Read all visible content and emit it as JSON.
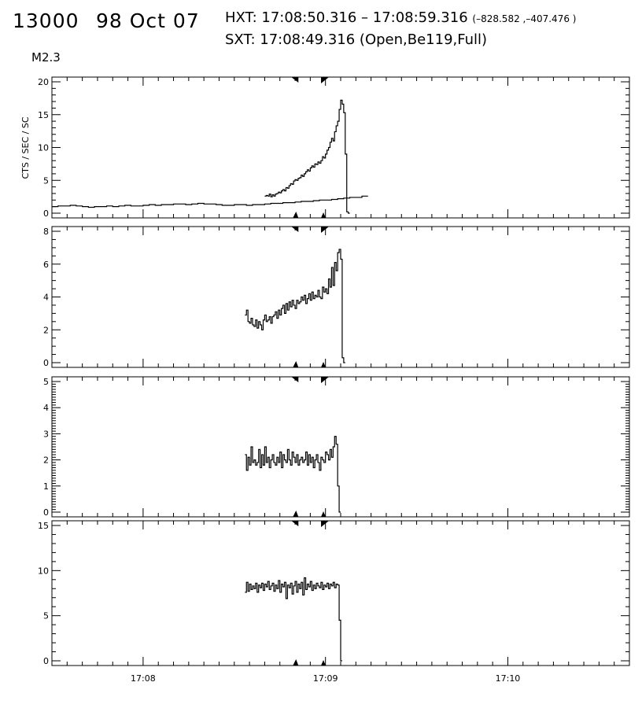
{
  "header": {
    "event_id": "13000",
    "date": "98 Oct 07",
    "hxt_label": "HXT:",
    "hxt_range": "17:08:50.316 – 17:08:59.316",
    "hxt_coords": "(–828.582 ,–407.476 )",
    "sxt_label": "SXT:",
    "sxt_time": "17:08:49.316",
    "sxt_settings": "(Open,Be119,Full)",
    "goes_class": "M2.3"
  },
  "chart_data": {
    "type": "line",
    "style": "histogram-step",
    "line_color": "#000000",
    "ylabel": "CTS / SEC / SC",
    "x_tick_labels": [
      "17:08",
      "17:09",
      "17:10"
    ],
    "x_ticks_seconds": [
      30,
      90,
      150
    ],
    "x_range_seconds": [
      0,
      190
    ],
    "hxt_interval_seconds": [
      80.316,
      89.316
    ],
    "panels": [
      {
        "name": "panel-1",
        "ylim": [
          0,
          20
        ],
        "y_ticks": [
          0,
          5,
          10,
          15,
          20
        ],
        "segments": [
          {
            "x0": 0,
            "dx": 2,
            "values": [
              1.0,
              1.1,
              1.1,
              1.2,
              1.1,
              1.0,
              0.9,
              1.0,
              1.0,
              1.1,
              1.0,
              1.1,
              1.2,
              1.1,
              1.1,
              1.2,
              1.3,
              1.2,
              1.3,
              1.3,
              1.4,
              1.4,
              1.3,
              1.4,
              1.5,
              1.4,
              1.4,
              1.3,
              1.2,
              1.2,
              1.3,
              1.3,
              1.2,
              1.3,
              1.3,
              1.4,
              1.5,
              1.5,
              1.6,
              1.6,
              1.7,
              1.8,
              1.8,
              1.9,
              2.0,
              2.0,
              2.1,
              2.2,
              2.3,
              2.4,
              2.4,
              2.6
            ]
          },
          {
            "x0": 70,
            "dx": 0.5,
            "values": [
              2.6,
              2.7,
              2.6,
              2.9,
              2.5,
              2.8,
              2.6,
              2.9,
              3.0,
              3.2,
              3.1,
              3.4,
              3.6,
              3.4,
              3.9,
              3.8,
              4.2,
              4.5,
              4.4,
              4.9,
              5.1,
              5.0,
              5.3,
              5.4,
              5.8,
              5.6,
              6.0,
              6.3,
              6.6,
              6.4,
              6.9,
              7.2,
              7.0,
              7.5,
              7.4,
              7.8,
              7.6,
              8.0,
              8.6,
              8.4,
              9.0,
              9.6,
              10.0,
              10.8,
              11.4,
              11.0,
              12.4,
              13.3,
              14.0,
              15.8,
              17.2,
              16.6,
              15.3,
              9.0,
              0.2,
              0.0
            ]
          }
        ]
      },
      {
        "name": "panel-2",
        "ylim": [
          0,
          8
        ],
        "y_ticks": [
          0,
          2,
          4,
          6,
          8
        ],
        "segments": [
          {
            "x0": 63.5,
            "dx": 0.5,
            "values": [
              2.9,
              3.2,
              2.5,
              2.4,
              2.7,
              2.3,
              2.2,
              2.6,
              2.1,
              2.5,
              2.3,
              2.0,
              2.6,
              2.9,
              2.5,
              2.6,
              2.8,
              2.4,
              2.8,
              2.9,
              3.1,
              2.7,
              3.2,
              2.9,
              3.3,
              3.5,
              3.0,
              3.6,
              3.2,
              3.7,
              3.4,
              3.8,
              3.5,
              3.3,
              3.8,
              3.6,
              3.7,
              4.0,
              3.8,
              4.1,
              3.6,
              3.9,
              4.2,
              3.8,
              4.3,
              3.9,
              4.1,
              4.0,
              4.4,
              4.0,
              3.9,
              4.6,
              4.3,
              4.5,
              4.2,
              5.1,
              4.6,
              5.8,
              4.7,
              6.1,
              5.6,
              6.7,
              6.9,
              6.3,
              0.3,
              0.0
            ]
          }
        ]
      },
      {
        "name": "panel-3",
        "ylim": [
          0,
          5
        ],
        "y_ticks": [
          0,
          1,
          2,
          3,
          4,
          5
        ],
        "segments": [
          {
            "x0": 63.5,
            "dx": 0.5,
            "values": [
              2.2,
              1.6,
              2.1,
              1.8,
              2.5,
              1.9,
              2.0,
              1.8,
              1.9,
              2.4,
              1.7,
              2.2,
              1.8,
              2.5,
              1.9,
              2.1,
              1.7,
              2.0,
              2.2,
              1.9,
              1.8,
              2.1,
              1.9,
              2.3,
              1.7,
              2.2,
              2.0,
              1.9,
              2.4,
              2.0,
              1.8,
              2.3,
              2.1,
              1.9,
              2.2,
              1.8,
              2.0,
              2.1,
              1.9,
              2.0,
              2.3,
              1.8,
              2.2,
              1.9,
              2.1,
              1.7,
              2.0,
              2.2,
              1.9,
              1.6,
              2.1,
              2.0,
              1.9,
              2.3,
              2.2,
              2.0,
              2.4,
              2.1,
              2.5,
              2.9,
              2.6,
              1.0,
              0.0
            ]
          }
        ]
      },
      {
        "name": "panel-4",
        "ylim": [
          0,
          15
        ],
        "y_ticks": [
          0,
          5,
          10,
          15
        ],
        "segments": [
          {
            "x0": 63.5,
            "dx": 0.5,
            "values": [
              7.6,
              8.7,
              7.7,
              8.5,
              7.9,
              8.3,
              8.0,
              8.6,
              7.6,
              8.4,
              8.1,
              8.6,
              7.8,
              8.5,
              8.2,
              8.8,
              7.9,
              8.3,
              8.6,
              7.7,
              8.4,
              8.0,
              8.9,
              7.6,
              8.5,
              8.2,
              8.7,
              6.9,
              8.4,
              8.1,
              8.6,
              7.4,
              8.3,
              8.8,
              7.6,
              8.5,
              8.0,
              8.7,
              7.3,
              9.2,
              7.9,
              8.5,
              8.2,
              8.8,
              7.8,
              8.4,
              8.0,
              8.6,
              8.3,
              8.1,
              8.7,
              7.9,
              8.4,
              8.2,
              8.6,
              8.0,
              8.5,
              8.3,
              8.7,
              8.1,
              8.5,
              8.4,
              4.5,
              0.0
            ]
          }
        ]
      }
    ]
  }
}
